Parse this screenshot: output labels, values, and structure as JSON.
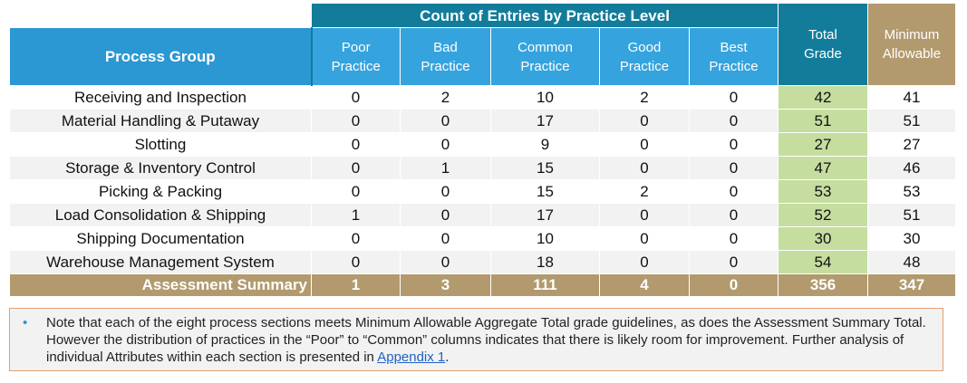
{
  "table": {
    "group_header": "Count of Entries by Practice Level",
    "headers": [
      "Process Group",
      "Poor Practice",
      "Bad Practice",
      "Common Practice",
      "Good Practice",
      "Best Practice",
      "Total Grade",
      "Minimum Allowable"
    ],
    "rows": [
      {
        "group": "Receiving and Inspection",
        "values": [
          0,
          2,
          10,
          2,
          0
        ],
        "total": 42,
        "minimum": 41
      },
      {
        "group": "Material Handling & Putaway",
        "values": [
          0,
          0,
          17,
          0,
          0
        ],
        "total": 51,
        "minimum": 51
      },
      {
        "group": "Slotting",
        "values": [
          0,
          0,
          9,
          0,
          0
        ],
        "total": 27,
        "minimum": 27
      },
      {
        "group": "Storage & Inventory Control",
        "values": [
          0,
          1,
          15,
          0,
          0
        ],
        "total": 47,
        "minimum": 46
      },
      {
        "group": "Picking & Packing",
        "values": [
          0,
          0,
          15,
          2,
          0
        ],
        "total": 53,
        "minimum": 53
      },
      {
        "group": "Load Consolidation & Shipping",
        "values": [
          1,
          0,
          17,
          0,
          0
        ],
        "total": 52,
        "minimum": 51
      },
      {
        "group": "Shipping Documentation",
        "values": [
          0,
          0,
          10,
          0,
          0
        ],
        "total": 30,
        "minimum": 30
      },
      {
        "group": "Warehouse Management System",
        "values": [
          0,
          0,
          18,
          0,
          0
        ],
        "total": 54,
        "minimum": 48
      }
    ],
    "summary": {
      "label": "Assessment Summary",
      "values": [
        1,
        3,
        111,
        4,
        0
      ],
      "total": 356,
      "minimum": 347
    }
  },
  "note": {
    "text": "Note that each of the eight process sections meets Minimum Allowable Aggregate Total grade guidelines, as does the Assessment Summary Total. However the distribution of practices in the “Poor” to “Common” columns indicates that there is likely room for improvement. Further analysis of individual Attributes within each section is presented in ",
    "link": "Appendix 1",
    "end": "."
  }
}
